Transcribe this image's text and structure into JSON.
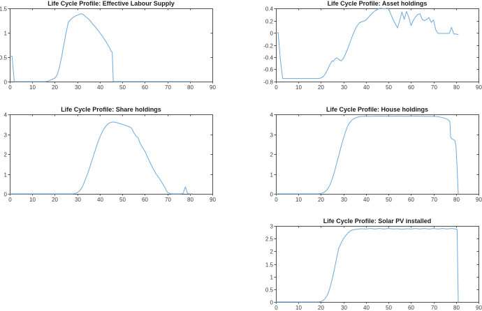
{
  "figure": {
    "background": "#ffffff",
    "colors": {
      "line": "#6fa9dc",
      "axis": "#4d4d4d",
      "tick_label": "#3d3d3d",
      "title": "#1a1a1a"
    }
  },
  "chart_data": [
    {
      "type": "line",
      "title": "Life Cycle Profile: Effective Labour Supply",
      "grid": {
        "row": 1,
        "col": 1
      },
      "xlim": [
        0,
        90
      ],
      "ylim": [
        0,
        1.5
      ],
      "grid_lines": false,
      "legend": null,
      "xticks": {
        "values": [
          0,
          10,
          20,
          30,
          40,
          50,
          60,
          70,
          80,
          90
        ],
        "labels": [
          "0",
          "10",
          "20",
          "30",
          "40",
          "50",
          "60",
          "70",
          "80",
          "90"
        ]
      },
      "yticks": {
        "values": [
          0,
          0.5,
          1,
          1.5
        ],
        "labels": [
          "0",
          "0.5",
          "1",
          "1.5"
        ]
      },
      "points": [
        [
          0,
          0.53
        ],
        [
          1,
          0.52
        ],
        [
          2,
          0
        ],
        [
          4,
          0
        ],
        [
          6,
          0
        ],
        [
          8,
          0
        ],
        [
          10,
          0
        ],
        [
          12,
          0
        ],
        [
          14,
          0
        ],
        [
          16,
          0
        ],
        [
          17,
          0.01
        ],
        [
          18,
          0.03
        ],
        [
          19,
          0.05
        ],
        [
          20,
          0.07
        ],
        [
          21,
          0.13
        ],
        [
          22,
          0.28
        ],
        [
          23,
          0.5
        ],
        [
          24,
          0.75
        ],
        [
          25,
          1.0
        ],
        [
          26,
          1.21
        ],
        [
          27,
          1.27
        ],
        [
          28,
          1.31
        ],
        [
          29,
          1.34
        ],
        [
          30,
          1.36
        ],
        [
          31,
          1.38
        ],
        [
          32,
          1.39
        ],
        [
          33,
          1.36
        ],
        [
          34,
          1.32
        ],
        [
          35,
          1.28
        ],
        [
          36,
          1.23
        ],
        [
          37,
          1.17
        ],
        [
          38,
          1.12
        ],
        [
          39,
          1.06
        ],
        [
          40,
          1.0
        ],
        [
          41,
          0.94
        ],
        [
          42,
          0.87
        ],
        [
          43,
          0.8
        ],
        [
          44,
          0.72
        ],
        [
          45,
          0.63
        ],
        [
          45.5,
          0.6
        ],
        [
          46,
          0
        ],
        [
          50,
          0
        ],
        [
          55,
          0
        ],
        [
          60,
          0
        ],
        [
          65,
          0
        ],
        [
          70,
          0
        ],
        [
          75,
          0
        ],
        [
          80,
          0
        ],
        [
          81,
          0
        ]
      ]
    },
    {
      "type": "line",
      "title": "Life Cycle Profile: Asset holdings",
      "grid": {
        "row": 1,
        "col": 2
      },
      "xlim": [
        0,
        90
      ],
      "ylim": [
        -0.8,
        0.4
      ],
      "grid_lines": false,
      "legend": null,
      "xticks": {
        "values": [
          0,
          10,
          20,
          30,
          40,
          50,
          60,
          70,
          80,
          90
        ],
        "labels": [
          "0",
          "10",
          "20",
          "30",
          "40",
          "50",
          "60",
          "70",
          "80",
          "90"
        ]
      },
      "yticks": {
        "values": [
          -0.8,
          -0.6,
          -0.4,
          -0.2,
          0,
          0.2,
          0.4
        ],
        "labels": [
          "-0.8",
          "-0.6",
          "-0.4",
          "-0.2",
          "0",
          "0.2",
          "0.4"
        ]
      },
      "points": [
        [
          0,
          0
        ],
        [
          1,
          0
        ],
        [
          2,
          -0.45
        ],
        [
          3,
          -0.75
        ],
        [
          5,
          -0.75
        ],
        [
          8,
          -0.75
        ],
        [
          11,
          -0.75
        ],
        [
          14,
          -0.75
        ],
        [
          17,
          -0.75
        ],
        [
          19,
          -0.75
        ],
        [
          20,
          -0.74
        ],
        [
          21,
          -0.72
        ],
        [
          22,
          -0.67
        ],
        [
          23,
          -0.6
        ],
        [
          24,
          -0.52
        ],
        [
          25,
          -0.46
        ],
        [
          25.5,
          -0.47
        ],
        [
          26,
          -0.44
        ],
        [
          27,
          -0.41
        ],
        [
          28,
          -0.44
        ],
        [
          29,
          -0.46
        ],
        [
          30,
          -0.42
        ],
        [
          31,
          -0.34
        ],
        [
          32,
          -0.25
        ],
        [
          33,
          -0.15
        ],
        [
          34,
          -0.05
        ],
        [
          35,
          0.04
        ],
        [
          36,
          0.11
        ],
        [
          37,
          0.16
        ],
        [
          38,
          0.18
        ],
        [
          39,
          0.19
        ],
        [
          40,
          0.21
        ],
        [
          41,
          0.25
        ],
        [
          42,
          0.29
        ],
        [
          43,
          0.33
        ],
        [
          44,
          0.36
        ],
        [
          45,
          0.38
        ],
        [
          46,
          0.4
        ],
        [
          47,
          0.4
        ],
        [
          48,
          0.39
        ],
        [
          49,
          0.4
        ],
        [
          50,
          0.4
        ],
        [
          51,
          0.31
        ],
        [
          52,
          0.22
        ],
        [
          53,
          0.15
        ],
        [
          54,
          0.08
        ],
        [
          55,
          0.2
        ],
        [
          56,
          0.34
        ],
        [
          57,
          0.22
        ],
        [
          58,
          0.35
        ],
        [
          59,
          0.26
        ],
        [
          60,
          0.12
        ],
        [
          61,
          0.2
        ],
        [
          62,
          0.26
        ],
        [
          63,
          0.3
        ],
        [
          64,
          0.31
        ],
        [
          65,
          0.22
        ],
        [
          66,
          0.2
        ],
        [
          67,
          0.22
        ],
        [
          68,
          0.25
        ],
        [
          69,
          0.17
        ],
        [
          70,
          0.21
        ],
        [
          71,
          0.05
        ],
        [
          72,
          -0.01
        ],
        [
          74,
          -0.01
        ],
        [
          76,
          -0.01
        ],
        [
          77,
          -0.01
        ],
        [
          78,
          0.09
        ],
        [
          79,
          -0.02
        ],
        [
          80,
          -0.02
        ],
        [
          81,
          -0.03
        ]
      ]
    },
    {
      "type": "line",
      "title": "Life Cycle Profile: Share holdings",
      "grid": {
        "row": 2,
        "col": 1
      },
      "xlim": [
        0,
        90
      ],
      "ylim": [
        0,
        4
      ],
      "grid_lines": false,
      "legend": null,
      "xticks": {
        "values": [
          0,
          10,
          20,
          30,
          40,
          50,
          60,
          70,
          80,
          90
        ],
        "labels": [
          "0",
          "10",
          "20",
          "30",
          "40",
          "50",
          "60",
          "70",
          "80",
          "90"
        ]
      },
      "yticks": {
        "values": [
          0,
          1,
          2,
          3,
          4
        ],
        "labels": [
          "0",
          "1",
          "2",
          "3",
          "4"
        ]
      },
      "points": [
        [
          0,
          0
        ],
        [
          5,
          0
        ],
        [
          10,
          0
        ],
        [
          15,
          0
        ],
        [
          20,
          0
        ],
        [
          25,
          0
        ],
        [
          28,
          0
        ],
        [
          29,
          0.02
        ],
        [
          30,
          0.06
        ],
        [
          31,
          0.15
        ],
        [
          32,
          0.3
        ],
        [
          33,
          0.55
        ],
        [
          34,
          0.85
        ],
        [
          35,
          1.15
        ],
        [
          36,
          1.5
        ],
        [
          37,
          1.85
        ],
        [
          38,
          2.2
        ],
        [
          39,
          2.55
        ],
        [
          40,
          2.85
        ],
        [
          41,
          3.1
        ],
        [
          42,
          3.3
        ],
        [
          43,
          3.45
        ],
        [
          44,
          3.55
        ],
        [
          45,
          3.6
        ],
        [
          46,
          3.62
        ],
        [
          47,
          3.6
        ],
        [
          48,
          3.57
        ],
        [
          49,
          3.53
        ],
        [
          50,
          3.5
        ],
        [
          51,
          3.46
        ],
        [
          52,
          3.42
        ],
        [
          53,
          3.38
        ],
        [
          54,
          3.32
        ],
        [
          55,
          3.1
        ],
        [
          56,
          2.92
        ],
        [
          57,
          2.82
        ],
        [
          58,
          2.52
        ],
        [
          59,
          2.32
        ],
        [
          60,
          2.15
        ],
        [
          61,
          1.9
        ],
        [
          62,
          1.65
        ],
        [
          63,
          1.42
        ],
        [
          64,
          1.2
        ],
        [
          65,
          1.0
        ],
        [
          66,
          0.85
        ],
        [
          67,
          0.68
        ],
        [
          68,
          0.5
        ],
        [
          69,
          0.3
        ],
        [
          70,
          0.08
        ],
        [
          71,
          0.02
        ],
        [
          72,
          0
        ],
        [
          74,
          0
        ],
        [
          76,
          0
        ],
        [
          77,
          0.02
        ],
        [
          78,
          0.35
        ],
        [
          79,
          0.02
        ],
        [
          80,
          0
        ],
        [
          81,
          0
        ]
      ]
    },
    {
      "type": "line",
      "title": "Life Cycle Profile: House holdings",
      "grid": {
        "row": 2,
        "col": 2
      },
      "xlim": [
        0,
        90
      ],
      "ylim": [
        0,
        4
      ],
      "grid_lines": false,
      "legend": null,
      "xticks": {
        "values": [
          0,
          10,
          20,
          30,
          40,
          50,
          60,
          70,
          80,
          90
        ],
        "labels": [
          "0",
          "10",
          "20",
          "30",
          "40",
          "50",
          "60",
          "70",
          "80",
          "90"
        ]
      },
      "yticks": {
        "values": [
          0,
          1,
          2,
          3,
          4
        ],
        "labels": [
          "0",
          "1",
          "2",
          "3",
          "4"
        ]
      },
      "points": [
        [
          0,
          0
        ],
        [
          5,
          0
        ],
        [
          10,
          0
        ],
        [
          15,
          0
        ],
        [
          19,
          0
        ],
        [
          20,
          0.02
        ],
        [
          21,
          0.06
        ],
        [
          22,
          0.12
        ],
        [
          23,
          0.25
        ],
        [
          24,
          0.45
        ],
        [
          25,
          0.75
        ],
        [
          26,
          1.1
        ],
        [
          27,
          1.55
        ],
        [
          28,
          1.95
        ],
        [
          29,
          2.4
        ],
        [
          30,
          2.8
        ],
        [
          31,
          3.15
        ],
        [
          32,
          3.45
        ],
        [
          33,
          3.62
        ],
        [
          34,
          3.74
        ],
        [
          35,
          3.8
        ],
        [
          36,
          3.85
        ],
        [
          37,
          3.88
        ],
        [
          38,
          3.9
        ],
        [
          42,
          3.9
        ],
        [
          46,
          3.91
        ],
        [
          50,
          3.9
        ],
        [
          54,
          3.91
        ],
        [
          58,
          3.9
        ],
        [
          62,
          3.91
        ],
        [
          66,
          3.9
        ],
        [
          70,
          3.9
        ],
        [
          72,
          3.88
        ],
        [
          74,
          3.84
        ],
        [
          76,
          3.76
        ],
        [
          77,
          3.68
        ],
        [
          77.3,
          3.6
        ],
        [
          77.6,
          2.85
        ],
        [
          78,
          2.78
        ],
        [
          79,
          2.72
        ],
        [
          79.5,
          2.68
        ],
        [
          80,
          2.4
        ],
        [
          80.5,
          1.3
        ],
        [
          81,
          0
        ]
      ]
    },
    {
      "type": "line",
      "title": "Life Cycle Profile: Solar PV installed",
      "grid": {
        "row": 3,
        "col": 2
      },
      "xlim": [
        0,
        90
      ],
      "ylim": [
        0,
        3
      ],
      "grid_lines": false,
      "legend": null,
      "xticks": {
        "values": [
          0,
          10,
          20,
          30,
          40,
          50,
          60,
          70,
          80,
          90
        ],
        "labels": [
          "0",
          "10",
          "20",
          "30",
          "40",
          "50",
          "60",
          "70",
          "80",
          "90"
        ]
      },
      "yticks": {
        "values": [
          0,
          0.5,
          1,
          1.5,
          2,
          2.5,
          3
        ],
        "labels": [
          "0",
          "0.5",
          "1",
          "1.5",
          "2",
          "2.5",
          "3"
        ]
      },
      "points": [
        [
          0,
          0
        ],
        [
          5,
          0
        ],
        [
          10,
          0
        ],
        [
          15,
          0
        ],
        [
          19,
          0
        ],
        [
          20,
          0.02
        ],
        [
          21,
          0.06
        ],
        [
          22,
          0.15
        ],
        [
          23,
          0.3
        ],
        [
          24,
          0.55
        ],
        [
          25,
          0.9
        ],
        [
          26,
          1.3
        ],
        [
          27,
          1.75
        ],
        [
          28,
          2.15
        ],
        [
          28.5,
          2.22
        ],
        [
          29,
          2.33
        ],
        [
          30,
          2.5
        ],
        [
          31,
          2.62
        ],
        [
          32,
          2.72
        ],
        [
          33,
          2.8
        ],
        [
          34,
          2.84
        ],
        [
          35,
          2.86
        ],
        [
          36,
          2.87
        ],
        [
          38,
          2.89
        ],
        [
          40,
          2.88
        ],
        [
          42,
          2.9
        ],
        [
          44,
          2.88
        ],
        [
          46,
          2.9
        ],
        [
          48,
          2.88
        ],
        [
          50,
          2.9
        ],
        [
          52,
          2.88
        ],
        [
          54,
          2.89
        ],
        [
          56,
          2.87
        ],
        [
          58,
          2.89
        ],
        [
          60,
          2.88
        ],
        [
          62,
          2.9
        ],
        [
          64,
          2.88
        ],
        [
          66,
          2.9
        ],
        [
          68,
          2.88
        ],
        [
          70,
          2.9
        ],
        [
          72,
          2.88
        ],
        [
          74,
          2.9
        ],
        [
          76,
          2.88
        ],
        [
          78,
          2.9
        ],
        [
          79,
          2.89
        ],
        [
          80,
          2.88
        ],
        [
          80.5,
          2.86
        ],
        [
          81,
          0
        ]
      ]
    }
  ]
}
